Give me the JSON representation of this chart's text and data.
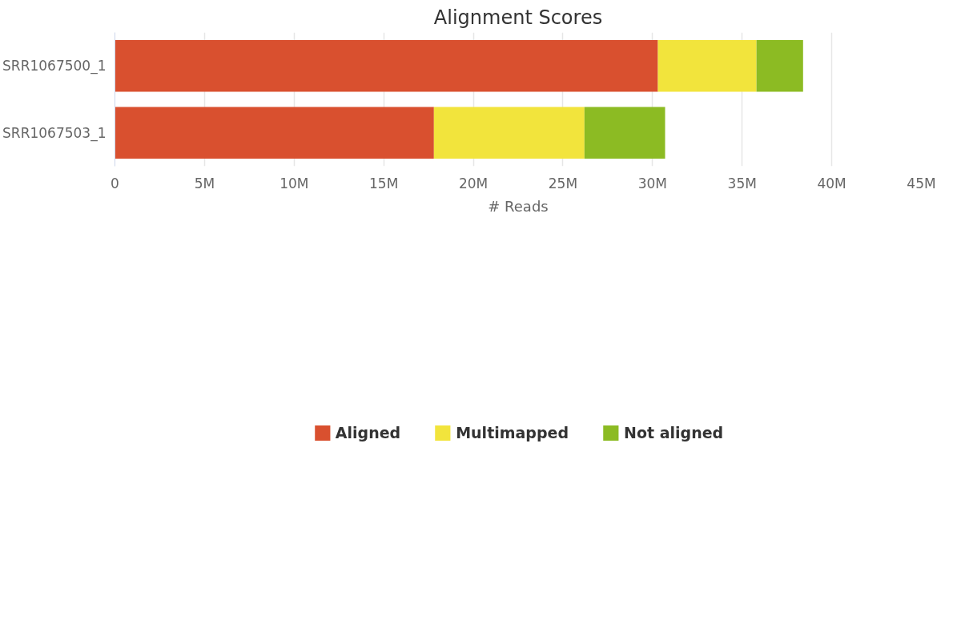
{
  "chart_data": {
    "type": "bar",
    "title": "Alignment Scores",
    "xlabel": "# Reads",
    "orientation": "horizontal",
    "stacked": true,
    "categories": [
      "SRR1067500_1",
      "SRR1067503_1"
    ],
    "series": [
      {
        "name": "Aligned",
        "color": "#d9502f",
        "values": [
          30300000,
          17800000
        ]
      },
      {
        "name": "Multimapped",
        "color": "#f2e43c",
        "values": [
          5500000,
          8400000
        ]
      },
      {
        "name": "Not aligned",
        "color": "#8cbb23",
        "values": [
          2600000,
          4500000
        ]
      }
    ],
    "xlim": [
      0,
      45000000
    ],
    "xticks": [
      0,
      {
        "value": 5000000,
        "label": "5M"
      },
      {
        "value": 10000000,
        "label": "10M"
      },
      {
        "value": 15000000,
        "label": "15M"
      },
      {
        "value": 20000000,
        "label": "20M"
      },
      {
        "value": 25000000,
        "label": "25M"
      },
      {
        "value": 30000000,
        "label": "30M"
      },
      {
        "value": 35000000,
        "label": "35M"
      },
      {
        "value": 40000000,
        "label": "40M"
      },
      {
        "value": 45000000,
        "label": "45M"
      }
    ],
    "grid": "x",
    "legend": "bottom"
  }
}
